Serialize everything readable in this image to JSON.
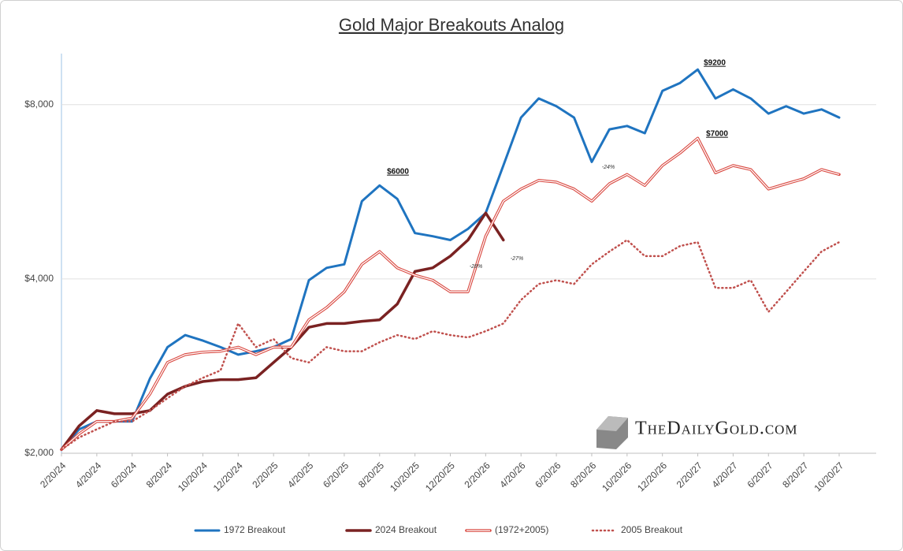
{
  "chart_data": {
    "type": "line",
    "title": "Gold Major Breakouts Analog",
    "watermark": "TheDailyGold.com",
    "log_scale": true,
    "grid": true,
    "legend": "bottom",
    "categories": [
      "2/20/24",
      null,
      "4/20/24",
      null,
      "6/20/24",
      null,
      "8/20/24",
      null,
      "10/20/24",
      null,
      "12/20/24",
      null,
      "2/20/25",
      null,
      "4/20/25",
      null,
      "6/20/25",
      null,
      "8/20/25",
      null,
      "10/20/25",
      null,
      "12/20/25",
      null,
      "2/20/26",
      null,
      "4/20/26",
      null,
      "6/20/26",
      null,
      "8/20/26",
      null,
      "10/20/26",
      null,
      "12/20/26",
      null,
      "2/20/27",
      null,
      "4/20/27",
      null,
      "6/20/27",
      null,
      "8/20/27",
      null,
      "10/20/27"
    ],
    "ylim": [
      2000,
      9800
    ],
    "yticks": [
      {
        "value": 2000,
        "label": "$2,000"
      },
      {
        "value": 4000,
        "label": "$4,000"
      },
      {
        "value": 8000,
        "label": "$8,000"
      }
    ],
    "series": [
      {
        "name": "1972 Breakout",
        "color": "#1f74c0",
        "style": "solid",
        "width": 3,
        "values": [
          2030,
          2200,
          2270,
          2270,
          2270,
          2690,
          3050,
          3200,
          3130,
          3050,
          2960,
          3000,
          3050,
          3150,
          3980,
          4180,
          4240,
          5450,
          5800,
          5500,
          4800,
          4740,
          4670,
          4880,
          5200,
          6280,
          7600,
          8200,
          7950,
          7600,
          6370,
          7250,
          7350,
          7140,
          8450,
          8720,
          9200,
          8200,
          8500,
          8200,
          7720,
          7950,
          7720,
          7850,
          7600
        ]
      },
      {
        "name": "2024 Breakout",
        "color": "#7a2222",
        "style": "solid",
        "width": 3.5,
        "values": [
          2030,
          2230,
          2370,
          2340,
          2340,
          2370,
          2530,
          2610,
          2660,
          2680,
          2680,
          2700,
          2870,
          3050,
          3300,
          3350,
          3350,
          3380,
          3400,
          3620,
          4120,
          4180,
          4380,
          4670,
          5200,
          4670,
          null,
          null,
          null,
          null,
          null,
          null,
          null,
          null,
          null,
          null,
          null,
          null,
          null,
          null,
          null,
          null,
          null,
          null,
          null
        ]
      },
      {
        "name": "(1972+2005)",
        "color": "#d9473f",
        "style": "double",
        "width": 3.5,
        "values": [
          2030,
          2160,
          2270,
          2270,
          2300,
          2530,
          2870,
          2960,
          2990,
          3000,
          3050,
          2960,
          3050,
          3050,
          3400,
          3570,
          3800,
          4240,
          4460,
          4180,
          4060,
          3980,
          3800,
          3800,
          4740,
          5450,
          5720,
          5920,
          5880,
          5720,
          5450,
          5840,
          6060,
          5800,
          6280,
          6600,
          7000,
          6100,
          6280,
          6180,
          5720,
          5840,
          5960,
          6180,
          6060
        ]
      },
      {
        "name": "2005 Breakout",
        "color": "#c0504d",
        "style": "dotted",
        "width": 2.5,
        "values": [
          2030,
          2130,
          2200,
          2270,
          2270,
          2370,
          2490,
          2610,
          2700,
          2780,
          3350,
          3050,
          3150,
          2920,
          2870,
          3050,
          3000,
          3000,
          3110,
          3200,
          3150,
          3250,
          3200,
          3170,
          3250,
          3350,
          3680,
          3920,
          3980,
          3920,
          4240,
          4460,
          4670,
          4380,
          4380,
          4560,
          4630,
          3860,
          3860,
          3980,
          3510,
          3800,
          4120,
          4460,
          4630
        ]
      }
    ],
    "annotations": [
      "$6000",
      "$9200",
      "$7000",
      "-28%",
      "-27%",
      "-24%"
    ]
  }
}
